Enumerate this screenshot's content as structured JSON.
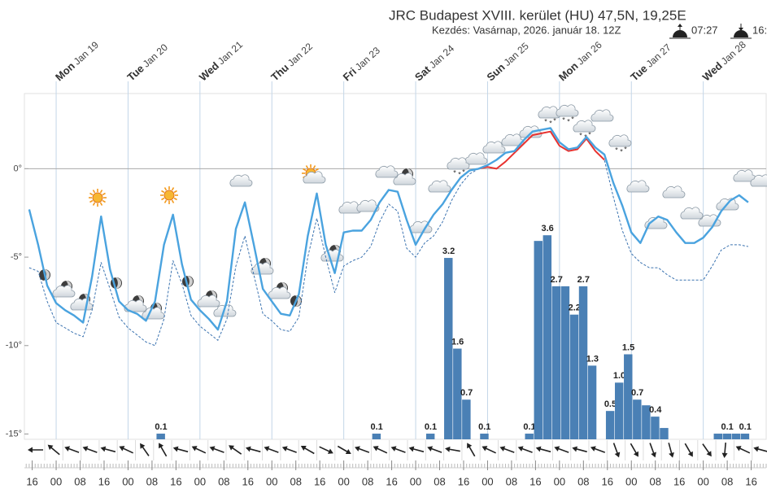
{
  "chart_data": {
    "type": "combo",
    "title": "JRC Budapest XVIII. kerület (HU) 47,5N, 19,25E",
    "subtitle": "Kezdés: Vasárnap, 2026. január 18. 12Z",
    "sunrise": "07:27",
    "sunset": "16:",
    "xlim": [
      -10.6,
      237
    ],
    "xticks": [
      {
        "value": -8,
        "label": "16"
      },
      {
        "value": 0,
        "label": "00"
      },
      {
        "value": 8,
        "label": "08"
      },
      {
        "value": 16,
        "label": "16"
      },
      {
        "value": 24,
        "label": "00"
      },
      {
        "value": 32,
        "label": "08"
      },
      {
        "value": 40,
        "label": "16"
      },
      {
        "value": 48,
        "label": "00"
      },
      {
        "value": 56,
        "label": "08"
      },
      {
        "value": 64,
        "label": "16"
      },
      {
        "value": 72,
        "label": "00"
      },
      {
        "value": 80,
        "label": "08"
      },
      {
        "value": 88,
        "label": "16"
      },
      {
        "value": 96,
        "label": "00"
      },
      {
        "value": 104,
        "label": "08"
      },
      {
        "value": 112,
        "label": "16"
      },
      {
        "value": 120,
        "label": "00"
      },
      {
        "value": 128,
        "label": "08"
      },
      {
        "value": 136,
        "label": "16"
      },
      {
        "value": 144,
        "label": "00"
      },
      {
        "value": 152,
        "label": "08"
      },
      {
        "value": 160,
        "label": "16"
      },
      {
        "value": 168,
        "label": "00"
      },
      {
        "value": 176,
        "label": "08"
      },
      {
        "value": 184,
        "label": "16"
      },
      {
        "value": 192,
        "label": "00"
      },
      {
        "value": 200,
        "label": "08"
      },
      {
        "value": 208,
        "label": "16"
      },
      {
        "value": 216,
        "label": "00"
      },
      {
        "value": 224,
        "label": "08"
      },
      {
        "value": 232,
        "label": "16"
      }
    ],
    "days": [
      {
        "value": 0,
        "weekday": "Mon",
        "date": "Jan 19"
      },
      {
        "value": 24,
        "weekday": "Tue",
        "date": "Jan 20"
      },
      {
        "value": 48,
        "weekday": "Wed",
        "date": "Jan 21"
      },
      {
        "value": 72,
        "weekday": "Thu",
        "date": "Jan 22"
      },
      {
        "value": 96,
        "weekday": "Fri",
        "date": "Jan 23"
      },
      {
        "value": 120,
        "weekday": "Sat",
        "date": "Jan 24"
      },
      {
        "value": 144,
        "weekday": "Sun",
        "date": "Jan 25"
      },
      {
        "value": 168,
        "weekday": "Mon",
        "date": "Jan 26"
      },
      {
        "value": 192,
        "weekday": "Tue",
        "date": "Jan 27"
      },
      {
        "value": 216,
        "weekday": "Wed",
        "date": "Jan 28"
      }
    ],
    "ylim": [
      -15.3,
      4.25
    ],
    "yticks": [
      {
        "value": 0,
        "label": "0°"
      },
      {
        "value": -5,
        "label": "-5°"
      },
      {
        "value": -10,
        "label": "-10°"
      },
      {
        "value": -15,
        "label": "-15°"
      }
    ],
    "y2lim": [
      0,
      6.1
    ],
    "grid": true,
    "series": [
      {
        "type": "line",
        "color": "#4aa3df",
        "x": [
          -9,
          -6,
          -3,
          0,
          3,
          6,
          9,
          12,
          15,
          18,
          21,
          24,
          27,
          30,
          33,
          36,
          39,
          42,
          45,
          48,
          51,
          54,
          57,
          60,
          63,
          66,
          69,
          72,
          75,
          78,
          81,
          84,
          87,
          90,
          93,
          96,
          99,
          102,
          105,
          108,
          111,
          114,
          117,
          120,
          123,
          126,
          129,
          132,
          135,
          138,
          141,
          144,
          147,
          150,
          153,
          156,
          159,
          162,
          165,
          168,
          171,
          174,
          177,
          180,
          183,
          186,
          189,
          192,
          195,
          198,
          201,
          204,
          207,
          210,
          213,
          216,
          219,
          222,
          225,
          228,
          231
        ],
        "values": [
          -2.3,
          -4.3,
          -6.6,
          -7.6,
          -8.0,
          -8.3,
          -8.7,
          -6.1,
          -2.7,
          -5.7,
          -7.5,
          -8.0,
          -8.2,
          -8.6,
          -7.5,
          -4.3,
          -2.6,
          -5.4,
          -7.4,
          -8.0,
          -8.5,
          -9.1,
          -7.5,
          -3.4,
          -1.9,
          -4.3,
          -6.8,
          -7.5,
          -8.2,
          -8.3,
          -7.1,
          -3.8,
          -1.4,
          -4.3,
          -5.9,
          -3.6,
          -3.5,
          -3.5,
          -2.9,
          -1.9,
          -1.2,
          -1.3,
          -2.9,
          -4.3,
          -3.4,
          -2.6,
          -2.0,
          -1.2,
          -0.5,
          -0.1,
          0.0,
          0.2,
          0.5,
          0.9,
          1.0,
          1.6,
          2.1,
          2.2,
          2.3,
          1.5,
          1.1,
          1.2,
          1.8,
          1.2,
          0.8,
          -0.8,
          -2.1,
          -3.6,
          -4.2,
          -3.1,
          -2.7,
          -2.9,
          -3.6,
          -4.2,
          -4.2,
          -3.9,
          -3.3,
          -2.4,
          -1.8,
          -1.5,
          -1.9
        ]
      },
      {
        "type": "line",
        "color": "#3b73b0",
        "dashed": true,
        "above_zero_color": "#e8322f",
        "x": [
          -9,
          -6,
          -3,
          0,
          3,
          6,
          9,
          12,
          15,
          18,
          21,
          24,
          27,
          30,
          33,
          36,
          39,
          42,
          45,
          48,
          51,
          54,
          57,
          60,
          63,
          66,
          69,
          72,
          75,
          78,
          81,
          84,
          87,
          90,
          93,
          96,
          99,
          102,
          105,
          108,
          111,
          114,
          117,
          120,
          123,
          126,
          129,
          132,
          135,
          138,
          141,
          144,
          147,
          150,
          153,
          156,
          159,
          162,
          165,
          168,
          171,
          174,
          177,
          180,
          183,
          186,
          189,
          192,
          195,
          198,
          201,
          204,
          207,
          210,
          213,
          216,
          219,
          222,
          225,
          228,
          231
        ],
        "values": [
          -5.6,
          -5.8,
          -7.5,
          -8.7,
          -9.0,
          -9.3,
          -9.5,
          -8.0,
          -5.3,
          -6.8,
          -8.4,
          -9.0,
          -9.4,
          -9.8,
          -10.0,
          -8.5,
          -5.2,
          -6.5,
          -8.3,
          -8.9,
          -9.3,
          -9.7,
          -8.5,
          -5.5,
          -3.8,
          -6.0,
          -8.2,
          -8.6,
          -9.1,
          -9.2,
          -8.4,
          -5.0,
          -2.8,
          -5.0,
          -7.0,
          -5.5,
          -5.2,
          -5.0,
          -4.4,
          -3.0,
          -2.0,
          -2.4,
          -4.5,
          -5.0,
          -4.2,
          -3.8,
          -3.0,
          -1.8,
          -0.9,
          -0.3,
          0.0,
          0.1,
          0.0,
          0.4,
          0.9,
          1.4,
          1.9,
          2.0,
          2.1,
          1.3,
          1.0,
          1.1,
          1.7,
          1.0,
          0.5,
          -1.6,
          -3.5,
          -4.8,
          -5.3,
          -5.6,
          -5.6,
          -6.0,
          -6.3,
          -6.3,
          -6.3,
          -6.3,
          -5.5,
          -4.6,
          -4.3,
          -4.3,
          -4.4
        ]
      },
      {
        "type": "bar",
        "color": "#4a80b5",
        "axis": "y2",
        "x": [
          35,
          107,
          125,
          131,
          134,
          137,
          143,
          158,
          161,
          164,
          167,
          170,
          173,
          176,
          179,
          185,
          188,
          191,
          194,
          197,
          200,
          203,
          221,
          224,
          227,
          230
        ],
        "values": [
          0.1,
          0.1,
          0.1,
          3.2,
          1.6,
          0.7,
          0.1,
          0.1,
          3.5,
          3.6,
          2.7,
          2.7,
          2.2,
          2.7,
          1.3,
          0.5,
          1.0,
          1.5,
          0.7,
          0.6,
          0.4,
          0.2,
          0.1,
          0.1,
          0.1,
          0.1
        ],
        "value_labels": [
          "0.1",
          "0.1",
          "0.1",
          "3.2",
          "1.6",
          "0.7",
          "0.1",
          "0.1",
          null,
          "3.6",
          "2.7",
          null,
          "2.2",
          "2.7",
          "1.3",
          "0.5",
          "1.0",
          "1.5",
          "0.7",
          null,
          "0.4",
          null,
          null,
          "0.1",
          null,
          "0.1"
        ]
      }
    ]
  }
}
